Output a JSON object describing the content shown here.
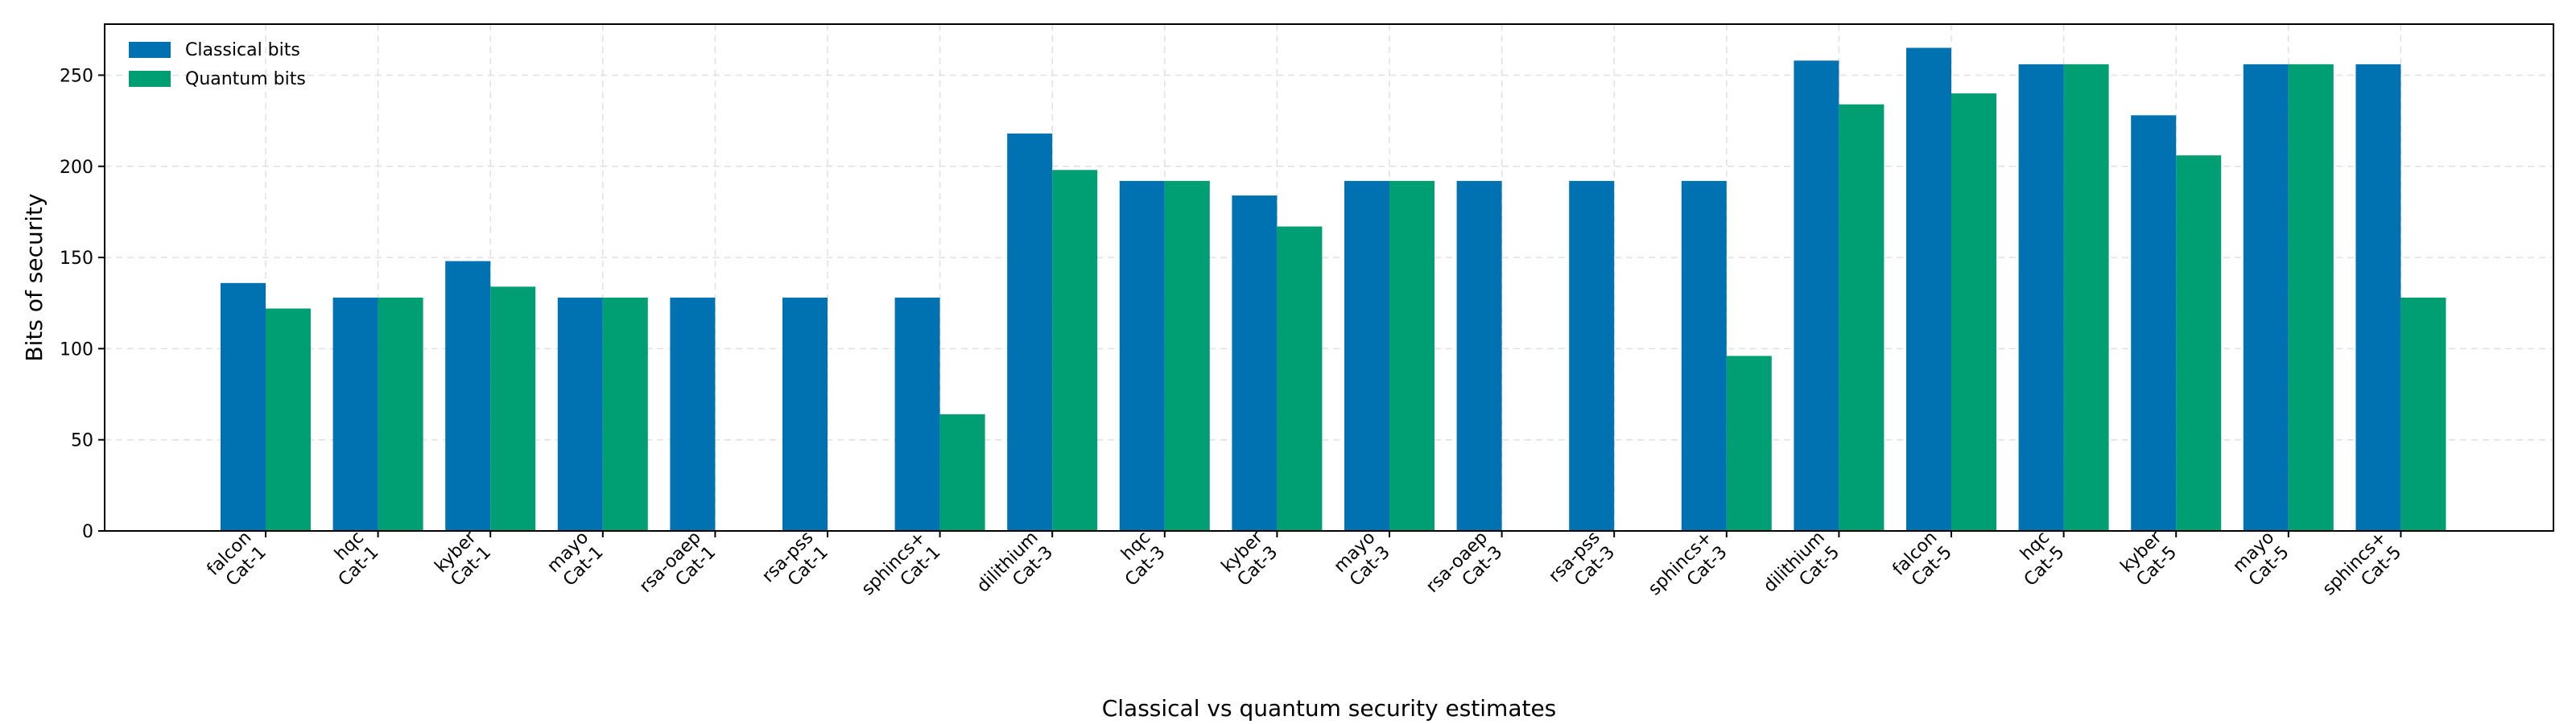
{
  "chart_data": {
    "type": "bar",
    "categories": [
      [
        "falcon",
        "Cat-1"
      ],
      [
        "hqc",
        "Cat-1"
      ],
      [
        "kyber",
        "Cat-1"
      ],
      [
        "mayo",
        "Cat-1"
      ],
      [
        "rsa-oaep",
        "Cat-1"
      ],
      [
        "rsa-pss",
        "Cat-1"
      ],
      [
        "sphincs+",
        "Cat-1"
      ],
      [
        "dilithium",
        "Cat-3"
      ],
      [
        "hqc",
        "Cat-3"
      ],
      [
        "kyber",
        "Cat-3"
      ],
      [
        "mayo",
        "Cat-3"
      ],
      [
        "rsa-oaep",
        "Cat-3"
      ],
      [
        "rsa-pss",
        "Cat-3"
      ],
      [
        "sphincs+",
        "Cat-3"
      ],
      [
        "dilithium",
        "Cat-5"
      ],
      [
        "falcon",
        "Cat-5"
      ],
      [
        "hqc",
        "Cat-5"
      ],
      [
        "kyber",
        "Cat-5"
      ],
      [
        "mayo",
        "Cat-5"
      ],
      [
        "sphincs+",
        "Cat-5"
      ]
    ],
    "series": [
      {
        "name": "Classical bits",
        "color": "#0072b2",
        "values": [
          136,
          128,
          148,
          128,
          128,
          128,
          128,
          218,
          192,
          184,
          192,
          192,
          192,
          192,
          258,
          265,
          256,
          228,
          256,
          256
        ]
      },
      {
        "name": "Quantum bits",
        "color": "#009e73",
        "values": [
          122,
          128,
          134,
          128,
          0,
          0,
          64,
          198,
          192,
          167,
          192,
          0,
          0,
          96,
          234,
          240,
          256,
          206,
          256,
          128
        ]
      }
    ],
    "title": "",
    "xlabel": "Classical vs quantum security estimates",
    "ylabel": "Bits of security",
    "ylim": [
      0,
      278
    ],
    "yticks": [
      0,
      50,
      100,
      150,
      200,
      250
    ],
    "grid": true,
    "legend_position": "top-left"
  }
}
